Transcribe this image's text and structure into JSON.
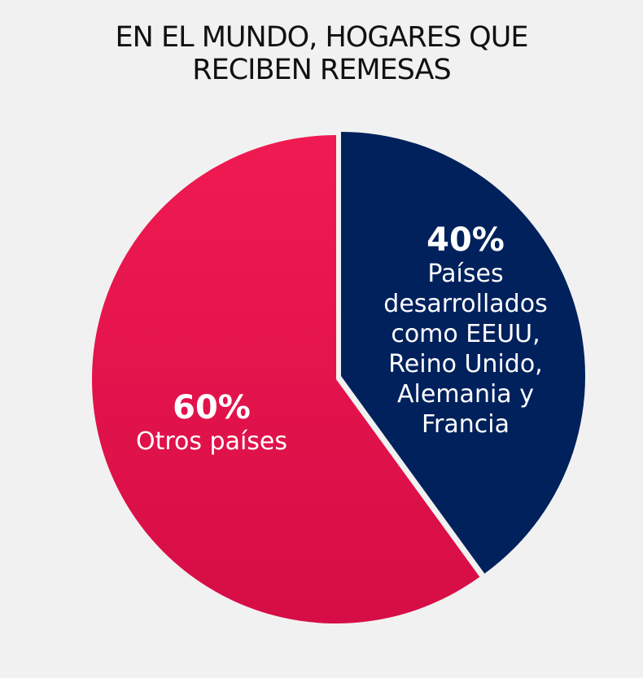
{
  "colors": {
    "background": "#f1f1f1",
    "developed": "#00215c",
    "others": "#e3134a"
  },
  "chart_data": {
    "type": "pie",
    "title": "EN EL MUNDO, HOGARES QUE RECIBEN REMESAS",
    "title_lines": [
      "EN EL MUNDO, HOGARES QUE",
      "RECIBEN REMESAS"
    ],
    "slices": [
      {
        "label": "Países desarrollados como EEUU, Reino Unido, Alemania y Francia",
        "value": 40,
        "percent_label": "40%",
        "label_lines": [
          "Países",
          "desarrollados",
          "como EEUU,",
          "Reino Unido,",
          "Alemania y",
          "Francia"
        ],
        "color": "#00215c"
      },
      {
        "label": "Otros países",
        "value": 60,
        "percent_label": "60%",
        "label_lines": [
          "Otros países"
        ],
        "color": "#e3134a"
      }
    ]
  }
}
